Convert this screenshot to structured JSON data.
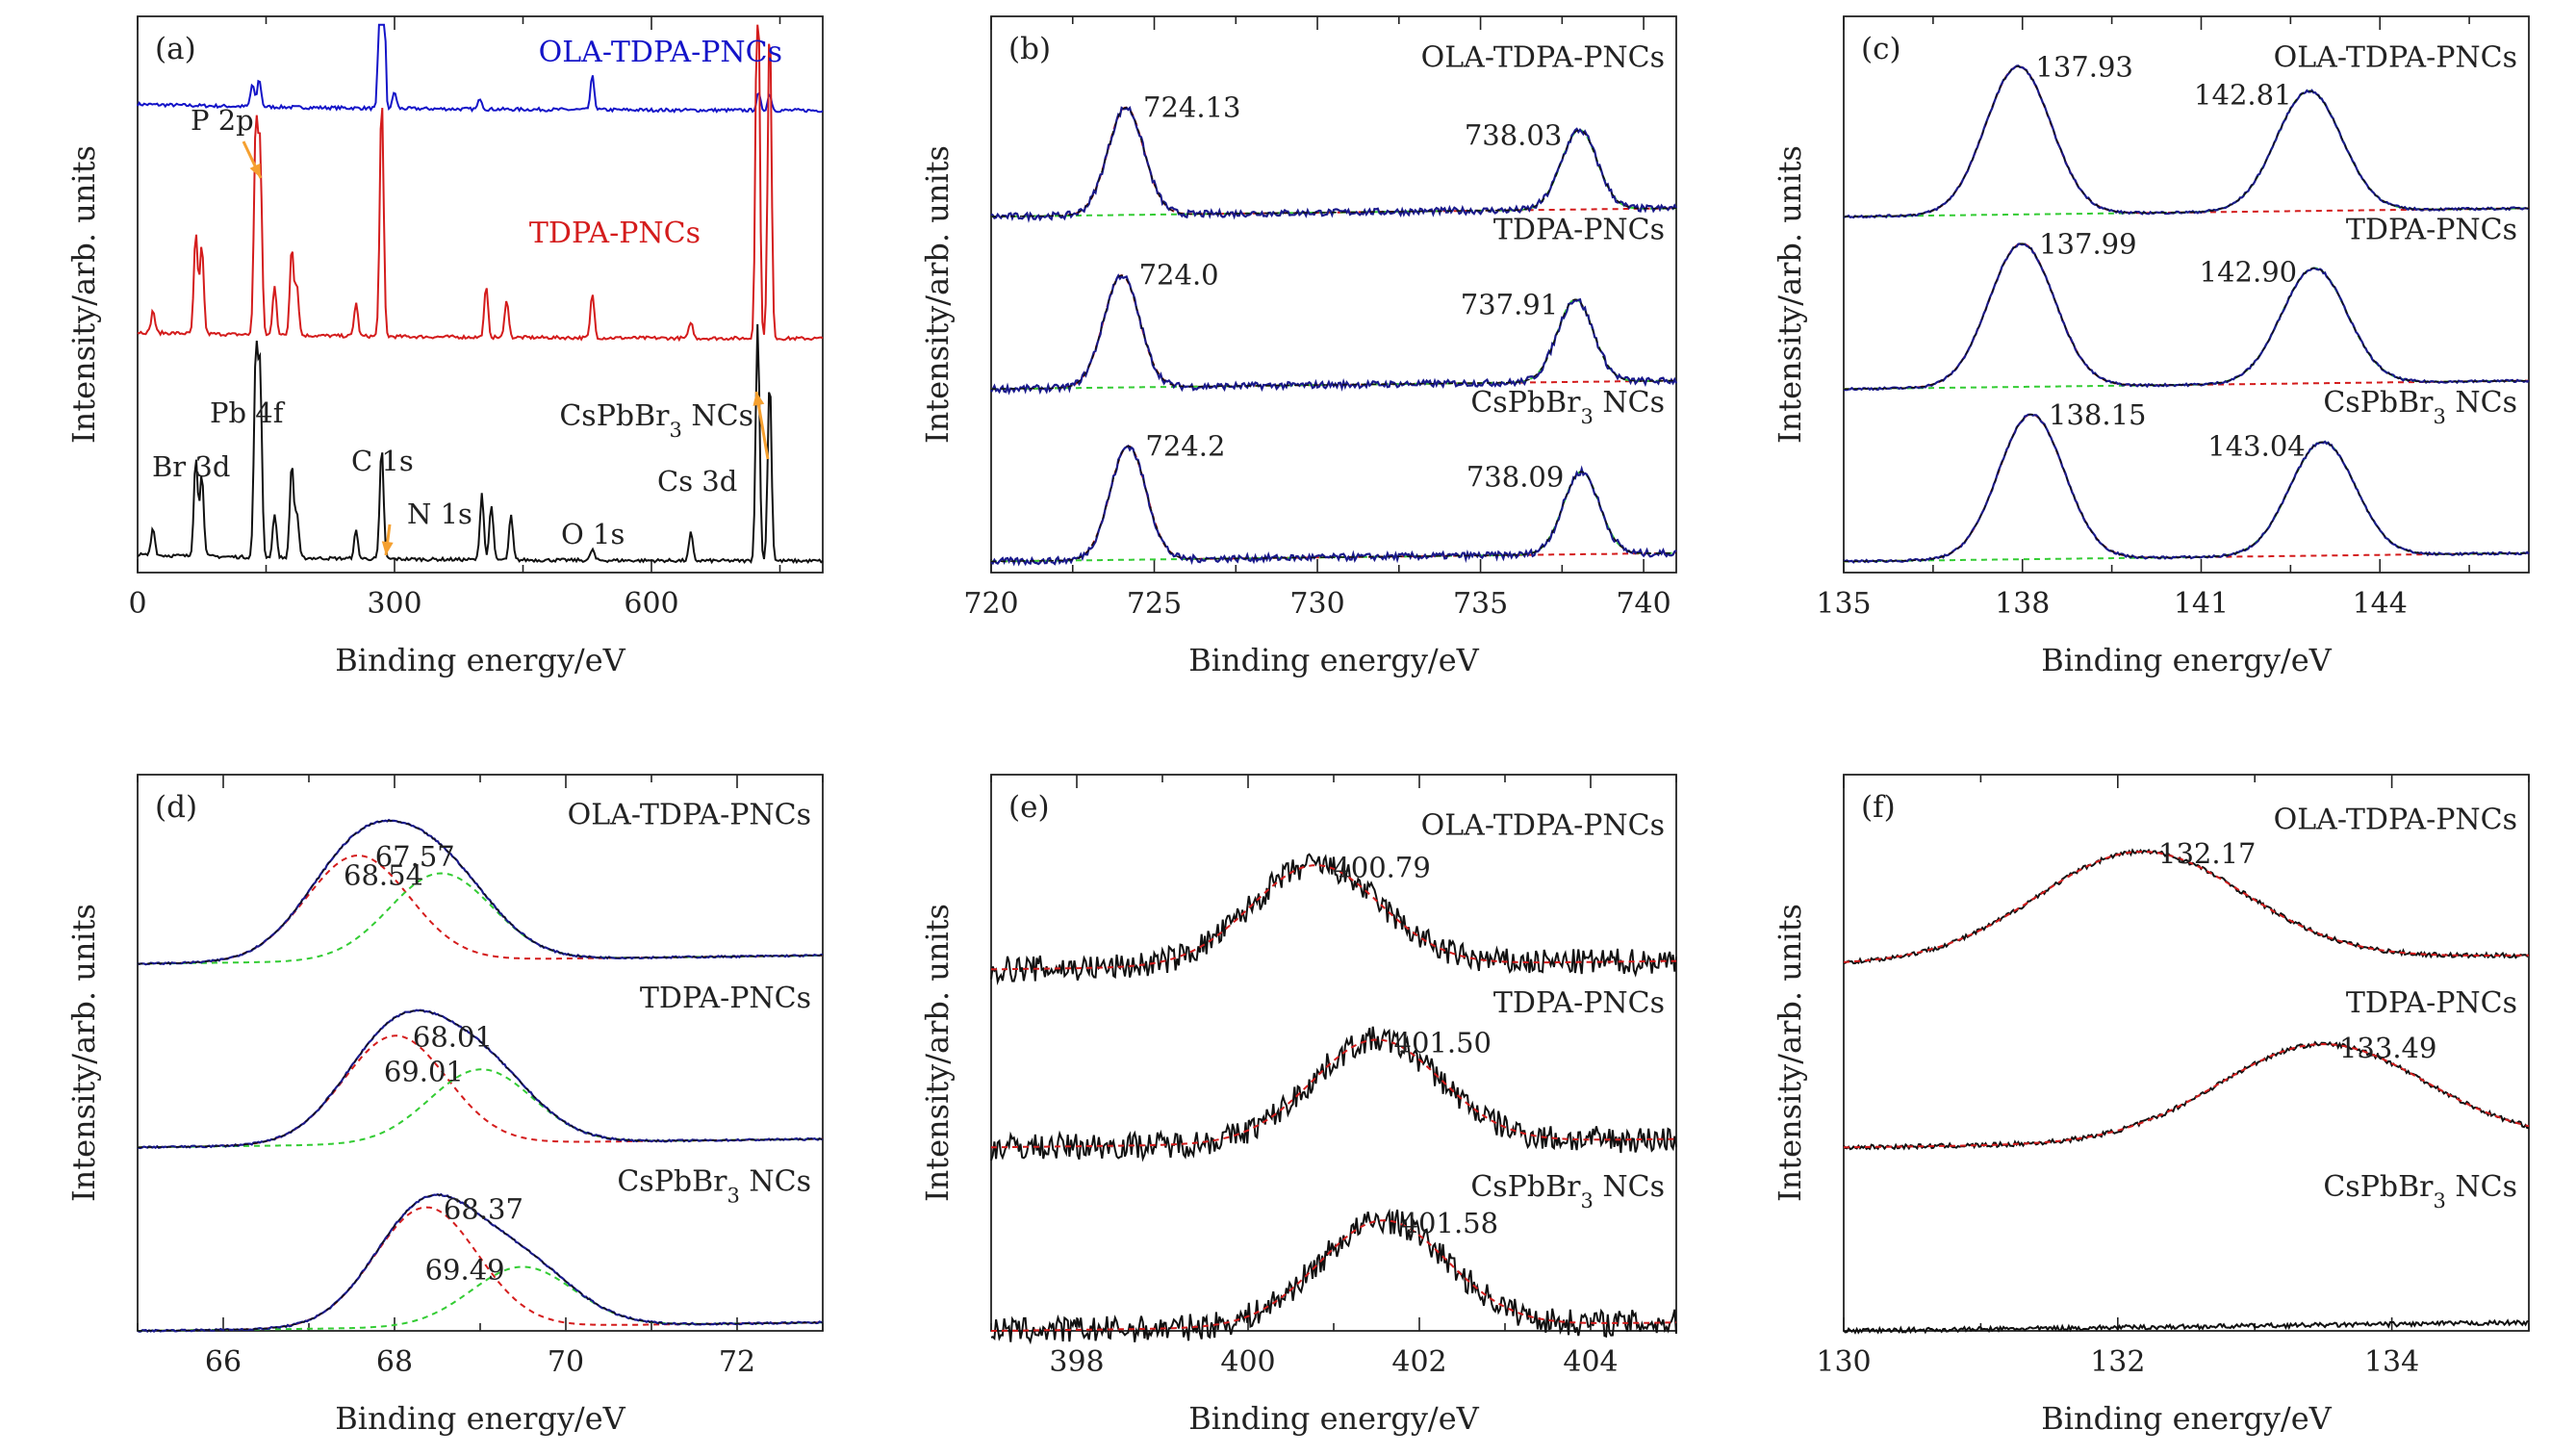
{
  "figure": {
    "type": "xps_spectra_grid",
    "colors": {
      "black": "#111111",
      "blue": "#1414c8",
      "red": "#d41c1c",
      "green": "#33cc33",
      "navy": "#1a1a8c",
      "orange": "#f5a030"
    }
  },
  "chart_data": [
    {
      "panel": "(a)",
      "type": "line",
      "xlabel": "Binding energy/eV",
      "ylabel": "Intensity/arb. units",
      "xlim": [
        0,
        800
      ],
      "xticks": [
        "0",
        "300",
        "600"
      ],
      "xtick_values": [
        0,
        300,
        600
      ],
      "series": [
        {
          "name": "OLA-TDPA-PNCs",
          "color": "#1414c8",
          "baseline": 0.81,
          "peaks": [
            [
              134,
              0.04
            ],
            [
              142,
              0.05
            ],
            [
              285,
              0.98
            ],
            [
              300,
              0.03
            ],
            [
              400,
              0.02
            ],
            [
              531,
              0.06
            ],
            [
              725,
              0.03
            ],
            [
              738,
              0.03
            ]
          ]
        },
        {
          "name": "TDPA-PNCs",
          "color": "#d41c1c",
          "baseline": 0.4,
          "peaks": [
            [
              18,
              0.04
            ],
            [
              68,
              0.18
            ],
            [
              75,
              0.16
            ],
            [
              138,
              0.37
            ],
            [
              143,
              0.33
            ],
            [
              160,
              0.09
            ],
            [
              180,
              0.16
            ],
            [
              186,
              0.09
            ],
            [
              255,
              0.06
            ],
            [
              285,
              0.43
            ],
            [
              407,
              0.09
            ],
            [
              431,
              0.07
            ],
            [
              531,
              0.08
            ],
            [
              646,
              0.03
            ],
            [
              724,
              0.73
            ],
            [
              738,
              0.57
            ]
          ]
        },
        {
          "name": "CsPbBr3 NCs",
          "color": "#111111",
          "baseline": 0.0,
          "peaks": [
            [
              18,
              0.05
            ],
            [
              68,
              0.18
            ],
            [
              75,
              0.15
            ],
            [
              138,
              0.36
            ],
            [
              143,
              0.33
            ],
            [
              160,
              0.08
            ],
            [
              180,
              0.17
            ],
            [
              186,
              0.08
            ],
            [
              255,
              0.05
            ],
            [
              285,
              0.2
            ],
            [
              402,
              0.12
            ],
            [
              413,
              0.1
            ],
            [
              436,
              0.08
            ],
            [
              531,
              0.02
            ],
            [
              646,
              0.05
            ],
            [
              724,
              0.43
            ],
            [
              738,
              0.33
            ]
          ]
        }
      ],
      "labels": [
        "OLA-TDPA-PNCs",
        "TDPA-PNCs",
        "CsPbBr3 NCs"
      ],
      "annotations": [
        "P 2p",
        "Pb 4f",
        "Br 3d",
        "C 1s",
        "N 1s",
        "O 1s",
        "Cs 3d"
      ]
    },
    {
      "panel": "(b)",
      "type": "line",
      "xlabel": "Binding energy/eV",
      "ylabel": "Intensity/arb. units",
      "xlim": [
        720,
        741
      ],
      "xticks": [
        "720",
        "725",
        "730",
        "735",
        "740"
      ],
      "xtick_values": [
        720,
        725,
        730,
        735,
        740
      ],
      "series": [
        {
          "name": "OLA-TDPA-PNCs",
          "peaks": [
            [
              724.13,
              0.69
            ],
            [
              738.03,
              0.51
            ]
          ]
        },
        {
          "name": "TDPA-PNCs",
          "peaks": [
            [
              724.0,
              0.72
            ],
            [
              737.91,
              0.53
            ]
          ]
        },
        {
          "name": "CsPbBr3 NCs",
          "peaks": [
            [
              724.2,
              0.73
            ],
            [
              738.09,
              0.53
            ]
          ]
        }
      ],
      "labels": [
        "OLA-TDPA-PNCs",
        "TDPA-PNCs",
        "CsPbBr3 NCs"
      ],
      "peak_labels": [
        "724.13",
        "738.03",
        "724.0",
        "737.91",
        "724.2",
        "738.09"
      ]
    },
    {
      "panel": "(c)",
      "type": "line",
      "xlabel": "Binding energy/eV",
      "ylabel": "Intensity/arb. units",
      "xlim": [
        135,
        146.5
      ],
      "xticks": [
        "135",
        "138",
        "141",
        "144"
      ],
      "xtick_values": [
        135,
        138,
        141,
        144
      ],
      "series": [
        {
          "name": "OLA-TDPA-PNCs",
          "peaks": [
            [
              137.93,
              0.95
            ],
            [
              142.81,
              0.77
            ]
          ]
        },
        {
          "name": "TDPA-PNCs",
          "peaks": [
            [
              137.99,
              0.92
            ],
            [
              142.9,
              0.74
            ]
          ]
        },
        {
          "name": "CsPbBr3 NCs",
          "peaks": [
            [
              138.15,
              0.93
            ],
            [
              143.04,
              0.73
            ]
          ]
        }
      ],
      "labels": [
        "OLA-TDPA-PNCs",
        "TDPA-PNCs",
        "CsPbBr3 NCs"
      ],
      "peak_labels": [
        "137.93",
        "142.81",
        "137.99",
        "142.90",
        "138.15",
        "143.04"
      ]
    },
    {
      "panel": "(d)",
      "type": "line",
      "xlabel": "Binding energy/eV",
      "ylabel": "Intensity/arb. units",
      "xlim": [
        65,
        73
      ],
      "xticks": [
        "66",
        "68",
        "70",
        "72"
      ],
      "xtick_values": [
        66,
        68,
        70,
        72
      ],
      "series": [
        {
          "name": "OLA-TDPA-PNCs",
          "peaks": [
            [
              67.57,
              0.73
            ],
            [
              68.54,
              0.6
            ]
          ]
        },
        {
          "name": "TDPA-PNCs",
          "peaks": [
            [
              68.01,
              0.75
            ],
            [
              69.01,
              0.51
            ]
          ]
        },
        {
          "name": "CsPbBr3 NCs",
          "peaks": [
            [
              68.37,
              0.83
            ],
            [
              69.49,
              0.41
            ]
          ]
        }
      ],
      "labels": [
        "OLA-TDPA-PNCs",
        "TDPA-PNCs",
        "CsPbBr3 NCs"
      ],
      "peak_labels": [
        "67.57",
        "68.54",
        "68.01",
        "69.01",
        "68.37",
        "69.49"
      ]
    },
    {
      "panel": "(e)",
      "type": "line",
      "xlabel": "Binding energy/eV",
      "ylabel": "Intensity/arb. units",
      "xlim": [
        397,
        405
      ],
      "xticks": [
        "398",
        "400",
        "402",
        "404"
      ],
      "xtick_values": [
        398,
        400,
        402,
        404
      ],
      "series": [
        {
          "name": "OLA-TDPA-PNCs",
          "peaks": [
            [
              400.79,
              0.72
            ]
          ]
        },
        {
          "name": "TDPA-PNCs",
          "peaks": [
            [
              401.5,
              0.74
            ]
          ]
        },
        {
          "name": "CsPbBr3 NCs",
          "peaks": [
            [
              401.58,
              0.76
            ]
          ]
        }
      ],
      "labels": [
        "OLA-TDPA-PNCs",
        "TDPA-PNCs",
        "CsPbBr3 NCs"
      ],
      "peak_labels": [
        "400.79",
        "401.50",
        "401.58"
      ]
    },
    {
      "panel": "(f)",
      "type": "line",
      "xlabel": "Binding energy/eV",
      "ylabel": "Intensity/arb. units",
      "xlim": [
        130,
        135
      ],
      "xticks": [
        "130",
        "132",
        "134"
      ],
      "xtick_values": [
        130,
        132,
        134
      ],
      "series": [
        {
          "name": "OLA-TDPA-PNCs",
          "peaks": [
            [
              132.17,
              0.78
            ]
          ]
        },
        {
          "name": "TDPA-PNCs",
          "peaks": [
            [
              133.49,
              0.7
            ]
          ]
        },
        {
          "name": "CsPbBr3 NCs",
          "peaks": []
        }
      ],
      "labels": [
        "OLA-TDPA-PNCs",
        "TDPA-PNCs",
        "CsPbBr3 NCs"
      ],
      "peak_labels": [
        "132.17",
        "133.49"
      ]
    }
  ]
}
